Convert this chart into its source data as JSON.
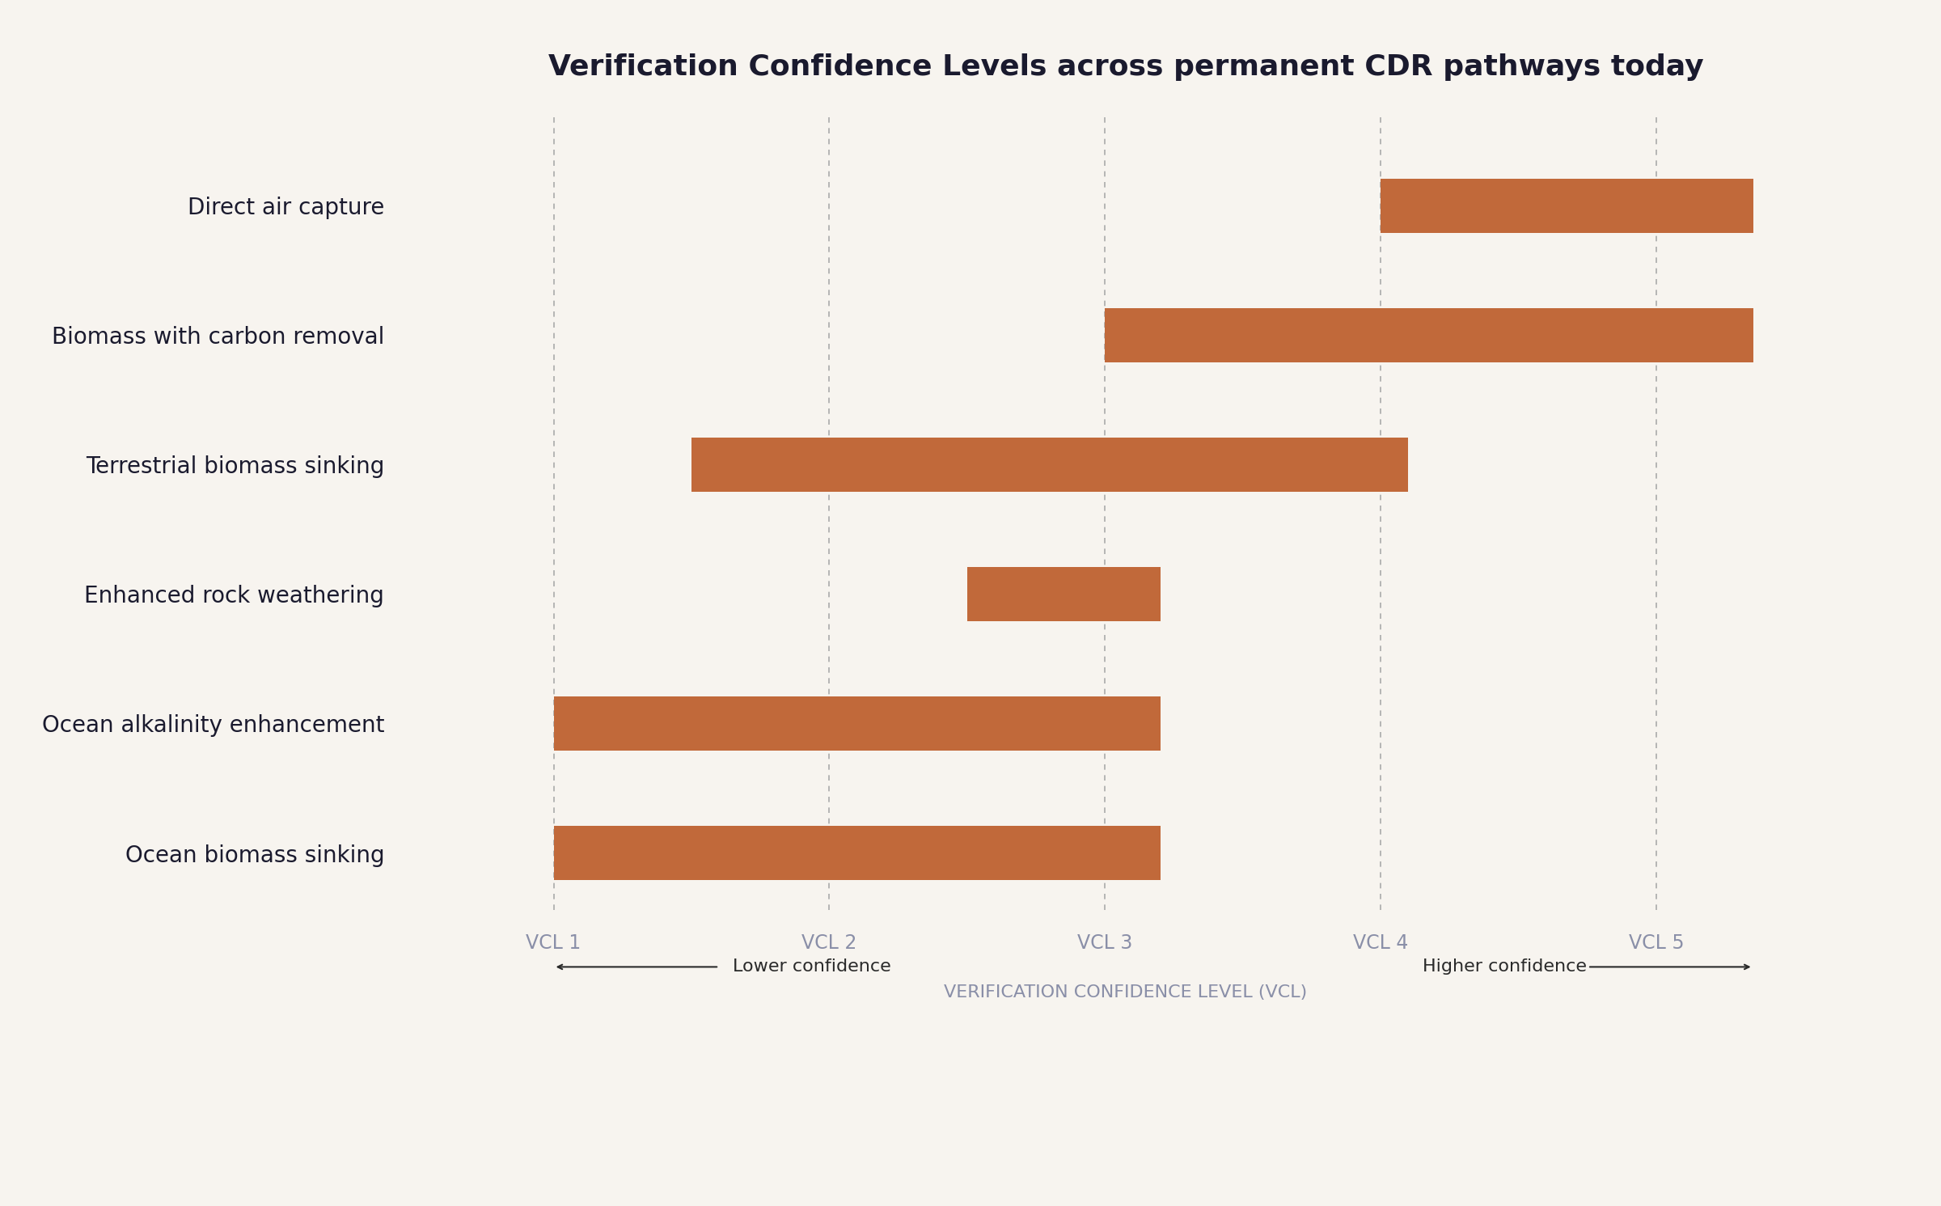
{
  "title": "Verification Confidence Levels across permanent CDR pathways today",
  "xlabel": "VERIFICATION CONFIDENCE LEVEL (VCL)",
  "background_color": "#f7f4ef",
  "bar_color": "#c1693a",
  "title_color": "#1a1a2e",
  "vcl_label_color": "#8a8fa8",
  "annotation_color": "#2a2a2a",
  "categories": [
    "Direct air capture",
    "Biomass with carbon removal",
    "Terrestrial biomass sinking",
    "Enhanced rock weathering",
    "Ocean alkalinity enhancement",
    "Ocean biomass sinking"
  ],
  "bar_starts": [
    4.0,
    3.0,
    1.5,
    2.5,
    1.0,
    1.0
  ],
  "bar_ends": [
    5.35,
    5.35,
    4.1,
    3.2,
    3.2,
    3.2
  ],
  "vcl_positions": [
    1,
    2,
    3,
    4,
    5
  ],
  "vcl_labels": [
    "VCL 1",
    "VCL 2",
    "VCL 3",
    "VCL 4",
    "VCL 5"
  ],
  "xlim": [
    0.4,
    5.75
  ],
  "bar_height": 0.42,
  "title_fontsize": 26,
  "category_fontsize": 20,
  "vcl_fontsize": 17,
  "xlabel_fontsize": 16,
  "annotation_fontsize": 16
}
